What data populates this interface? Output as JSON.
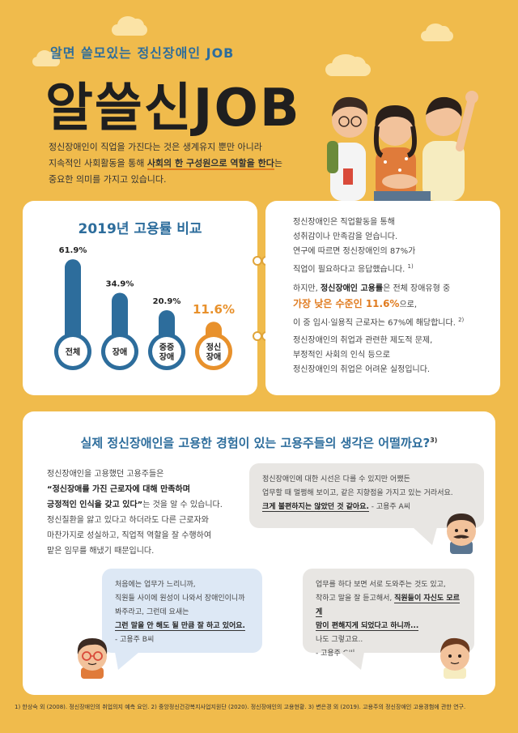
{
  "header": {
    "subtitle": "알면 쓸모있는 정신장애인 JOB",
    "title": "알쓸신JOB"
  },
  "intro": {
    "line1": "정신장애인이 직업을 가진다는 것은 생계유지 뿐만 아니라",
    "line2_pre": "지속적인 사회활동을 통해 ",
    "line2_bold": "사회의 한 구성원으로 역할을 한다",
    "line2_post": "는",
    "line3": "중요한 의미를 가지고 있습니다."
  },
  "chart_data": {
    "type": "bar",
    "title": "2019년 고용률 비교",
    "categories": [
      "전체",
      "장애",
      "중증 장애",
      "정신 장애"
    ],
    "values": [
      61.9,
      34.9,
      20.9,
      11.6
    ],
    "value_labels": [
      "61.9%",
      "34.9%",
      "20.9%",
      "11.6%"
    ],
    "colors": [
      "#2d6d9c",
      "#2d6d9c",
      "#2d6d9c",
      "#e8912c"
    ],
    "ylim": [
      0,
      62
    ]
  },
  "info": {
    "p1_l1": "정신장애인은 직업활동을 통해",
    "p1_l2": "성취감이나 만족감을 얻습니다.",
    "p1_l3": "연구에 따르면 정신장애인의 87%가",
    "p1_l4": "직업이 필요하다고 응답했습니다.",
    "p1_sup": "1)",
    "p2_l1_pre": "하지만, ",
    "p2_l1_bold": "정신장애인 고용률",
    "p2_l1_post": "은 전체 장애유형 중",
    "p2_l2_hl": "가장 낮은 수준인 11.6%",
    "p2_l2_post": "으로,",
    "p2_l3": "이 중 임시·일용직 근로자는 67%에 해당합니다.",
    "p2_sup": "2)",
    "p3_l1": "정신장애인의 취업과 관련한 제도적 문제,",
    "p3_l2": "부정적인 사회의 인식 등으로",
    "p3_l3": "정신장애인의 취업은 어려운 실정입니다."
  },
  "question": {
    "title": "실제 정신장애인을 고용한 경험이 있는 고용주들의 생각은 어떨까요?",
    "sup": "3)"
  },
  "employers_text": {
    "l1": "정신장애인을 고용했던 고용주들은",
    "l2_bold": "“정신장애를 가진 근로자에 대해 만족하며",
    "l3_bold": "긍정적인 인식을 갖고 있다”",
    "l3_post": "는 것을 알 수 있습니다.",
    "l4": "정신질환을 앓고 있다고 하더라도 다른 근로자와",
    "l5": "마찬가지로 성실하고, 직업적 역할을 잘 수행하여",
    "l6": "맡은 임무를 해냈기 때문입니다."
  },
  "quotes": {
    "a_l1": "정신장애인에 대한 시선은 다를 수 있지만 어쨌든",
    "a_l2": "업무할 때 멀쩡해 보이고, 같은 지향점을 가지고 있는 거라서요.",
    "a_l3_u": "크게 불편하지는 않았던 것 같아요.",
    "a_l3_sig": " - 고용주 A씨",
    "b_l1": "처음에는 업무가 느리니까,",
    "b_l2": "직원들 사이에 원성이 나와서 장애인이니까",
    "b_l3": "봐주라고, 그런데 요새는",
    "b_l4_u": "그런 말을 안 해도 될 만큼 잘 하고 있어요.",
    "b_sig": "- 고용주 B씨",
    "c_l1": "업무를 하다 보면 서로 도와주는 것도 있고,",
    "c_l2_pre": "착하고 말을 잘 듣고해서, ",
    "c_l2_u": "직원들이 자신도 모르게",
    "c_l3_u": "맘이 편해지게 되었다고 하니까...",
    "c_l4": "나도 그렇고요..",
    "c_sig": "- 고용주 C씨"
  },
  "footnote": "1) 한상숙 외 (2008). 정신장애인의 취업의지 예측 요인. 2) 중앙정신건강복지사업지원단 (2020). 정신장애인의 고용현황. 3) 변은경 외 (2019). 고용주의 정신장애인 고용경험에 관한 연구."
}
